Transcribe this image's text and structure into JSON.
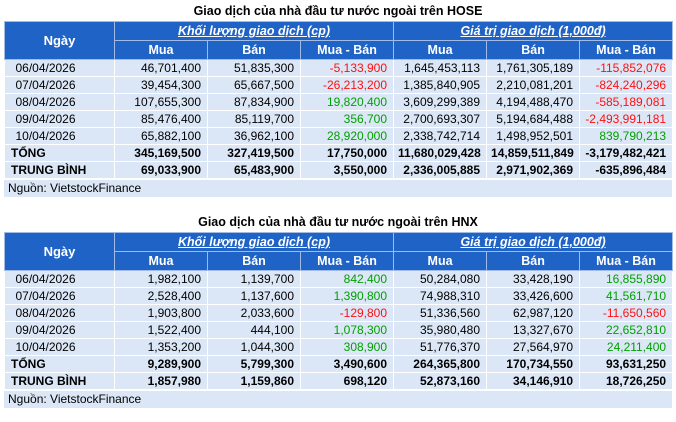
{
  "hose": {
    "title": "Giao dịch của nhà đầu tư nước ngoài trên HOSE",
    "day_header": "Ngày",
    "group1": "Khối lượng giao dịch (cp)",
    "group2": "Giá trị giao dịch (1,000đ)",
    "sub": [
      "Mua",
      "Bán",
      "Mua - Bán",
      "Mua",
      "Bán",
      "Mua - Bán"
    ],
    "rows": [
      [
        "06/04/2026",
        "46,701,400",
        "51,835,300",
        "-5,133,900",
        "1,645,453,113",
        "1,761,305,189",
        "-115,852,076"
      ],
      [
        "07/04/2026",
        "39,454,300",
        "65,667,500",
        "-26,213,200",
        "1,385,840,905",
        "2,210,081,201",
        "-824,240,296"
      ],
      [
        "08/04/2026",
        "107,655,300",
        "87,834,900",
        "19,820,400",
        "3,609,299,389",
        "4,194,488,470",
        "-585,189,081"
      ],
      [
        "09/04/2026",
        "85,476,400",
        "85,119,700",
        "356,700",
        "2,700,693,307",
        "5,194,684,488",
        "-2,493,991,181"
      ],
      [
        "10/04/2026",
        "65,882,100",
        "36,962,100",
        "28,920,000",
        "2,338,742,714",
        "1,498,952,501",
        "839,790,213"
      ]
    ],
    "total": [
      "TỔNG",
      "345,169,500",
      "327,419,500",
      "17,750,000",
      "11,680,029,428",
      "14,859,511,849",
      "-3,179,482,421"
    ],
    "avg": [
      "TRUNG BÌNH",
      "69,033,900",
      "65,483,900",
      "3,550,000",
      "2,336,005,885",
      "2,971,902,369",
      "-635,896,484"
    ],
    "source": "Nguồn: VietstockFinance"
  },
  "hnx": {
    "title": "Giao dịch của nhà đầu tư nước ngoài trên HNX",
    "day_header": "Ngày",
    "group1": "Khối lượng giao dịch (cp)",
    "group2": "Giá trị giao dịch (1,000đ)",
    "sub": [
      "Mua",
      "Bán",
      "Mua - Bán",
      "Mua",
      "Bán",
      "Mua - Bán"
    ],
    "rows": [
      [
        "06/04/2026",
        "1,982,100",
        "1,139,700",
        "842,400",
        "50,284,080",
        "33,428,190",
        "16,855,890"
      ],
      [
        "07/04/2026",
        "2,528,400",
        "1,137,600",
        "1,390,800",
        "74,988,310",
        "33,426,600",
        "41,561,710"
      ],
      [
        "08/04/2026",
        "1,903,800",
        "2,033,600",
        "-129,800",
        "51,336,560",
        "62,987,120",
        "-11,650,560"
      ],
      [
        "09/04/2026",
        "1,522,400",
        "444,100",
        "1,078,300",
        "35,980,480",
        "13,327,670",
        "22,652,810"
      ],
      [
        "10/04/2026",
        "1,353,200",
        "1,044,300",
        "308,900",
        "51,776,370",
        "27,564,970",
        "24,211,400"
      ]
    ],
    "total": [
      "TỔNG",
      "9,289,900",
      "5,799,300",
      "3,490,600",
      "264,365,800",
      "170,734,550",
      "93,631,250"
    ],
    "avg": [
      "TRUNG BÌNH",
      "1,857,980",
      "1,159,860",
      "698,120",
      "52,873,160",
      "34,146,910",
      "18,726,250"
    ],
    "source": "Nguồn: VietstockFinance"
  },
  "colors": {
    "header_bg": "#1f63c6",
    "cell_bg": "#dbe7f6",
    "positive": "#00a000",
    "negative": "#ff1010"
  }
}
